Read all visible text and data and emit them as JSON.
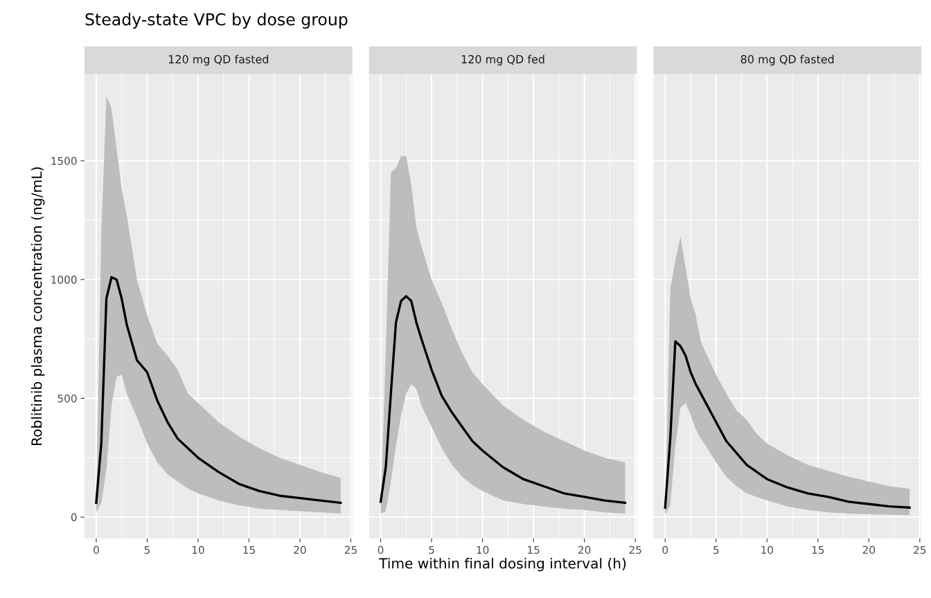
{
  "chart_data": [
    {
      "type": "line",
      "title": "Steady-state VPC by dose group",
      "subtitle": "120 mg QD fasted",
      "ylabel": "Roblitinib plasma concentration (ng/mL)",
      "x": [
        0,
        0.5,
        1,
        1.5,
        2,
        2.5,
        3,
        4,
        5,
        6,
        7,
        8,
        9,
        10,
        12,
        14,
        16,
        18,
        20,
        22,
        24
      ],
      "series": [
        {
          "color": "#000000",
          "values": [
            60,
            310,
            920,
            1010,
            1000,
            920,
            810,
            660,
            610,
            490,
            400,
            330,
            290,
            250,
            190,
            140,
            110,
            90,
            80,
            70,
            60
          ],
          "upper": [
            60,
            1200,
            1770,
            1720,
            1550,
            1380,
            1270,
            1000,
            850,
            730,
            680,
            620,
            520,
            480,
            400,
            340,
            290,
            250,
            220,
            190,
            165
          ],
          "lower": [
            20,
            60,
            200,
            470,
            590,
            600,
            520,
            420,
            310,
            230,
            180,
            150,
            120,
            100,
            70,
            50,
            35,
            30,
            25,
            20,
            15
          ]
        }
      ],
      "xlim": [
        -1.15,
        25.15
      ],
      "ylim": [
        -90,
        1865
      ],
      "xticks": [
        0,
        5,
        10,
        15,
        20,
        25
      ],
      "yticks": [
        0,
        500,
        1000,
        1500
      ],
      "grid": true
    },
    {
      "type": "line",
      "subtitle": "120 mg QD fed",
      "xlabel": "Time within final dosing interval (h)",
      "x": [
        0,
        0.5,
        1,
        1.5,
        2,
        2.5,
        3,
        3.5,
        4,
        5,
        6,
        7,
        8,
        9,
        10,
        12,
        14,
        16,
        18,
        20,
        22,
        24
      ],
      "series": [
        {
          "color": "#000000",
          "values": [
            65,
            210,
            520,
            820,
            910,
            930,
            910,
            820,
            750,
            620,
            510,
            440,
            380,
            320,
            280,
            210,
            160,
            130,
            100,
            85,
            70,
            60
          ],
          "upper": [
            30,
            700,
            1450,
            1470,
            1520,
            1520,
            1400,
            1220,
            1140,
            1000,
            900,
            790,
            690,
            610,
            560,
            470,
            410,
            360,
            320,
            280,
            250,
            230
          ],
          "lower": [
            15,
            25,
            150,
            300,
            430,
            520,
            560,
            540,
            470,
            380,
            290,
            220,
            170,
            135,
            110,
            70,
            55,
            45,
            35,
            30,
            20,
            15
          ]
        }
      ],
      "xlim": [
        -1.15,
        25.15
      ],
      "ylim": [
        -90,
        1865
      ],
      "xticks": [
        0,
        5,
        10,
        15,
        20,
        25
      ],
      "grid": true,
      "tick_labels": "x"
    },
    {
      "type": "line",
      "subtitle": "80 mg QD fasted",
      "x": [
        0,
        0.5,
        1,
        1.5,
        2,
        2.5,
        3,
        3.5,
        4,
        5,
        6,
        7,
        8,
        9,
        10,
        12,
        14,
        16,
        18,
        20,
        22,
        24
      ],
      "series": [
        {
          "color": "#000000",
          "values": [
            40,
            330,
            740,
            720,
            680,
            610,
            560,
            520,
            480,
            400,
            320,
            270,
            220,
            190,
            160,
            125,
            100,
            85,
            65,
            55,
            45,
            40
          ],
          "upper": [
            15,
            960,
            1080,
            1180,
            1050,
            920,
            850,
            740,
            690,
            600,
            520,
            450,
            410,
            350,
            310,
            260,
            220,
            195,
            170,
            150,
            130,
            120
          ],
          "lower": [
            10,
            50,
            300,
            460,
            480,
            430,
            370,
            330,
            300,
            230,
            170,
            130,
            100,
            85,
            70,
            45,
            30,
            20,
            15,
            12,
            10,
            8
          ]
        }
      ],
      "xlim": [
        -1.15,
        25.15
      ],
      "ylim": [
        -90,
        1865
      ],
      "xticks": [
        0,
        5,
        10,
        15,
        20,
        25
      ],
      "grid": true,
      "tick_labels": "x"
    }
  ]
}
